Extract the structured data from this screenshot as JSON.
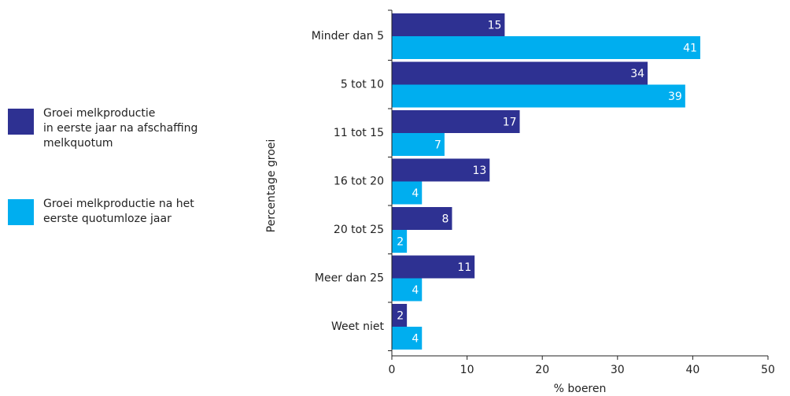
{
  "chart_data": {
    "type": "bar",
    "orientation": "horizontal",
    "title": "",
    "xlabel": "% boeren",
    "ylabel": "Percentage groei",
    "xlim": [
      0,
      50
    ],
    "xticks": [
      "0",
      "10",
      "20",
      "30",
      "40",
      "50"
    ],
    "grid": false,
    "legend_position": "left",
    "categories": [
      "Minder dan 5",
      "5 tot 10",
      "11 tot 15",
      "16 tot 20",
      "20 tot 25",
      "Meer dan 25",
      "Weet niet"
    ],
    "series": [
      {
        "name": "Groei melkproductie\nin eerste jaar na afschaffing\nmelkquotum",
        "color": "#2E3192",
        "values": [
          15,
          34,
          17,
          13,
          8,
          11,
          2
        ]
      },
      {
        "name": "Groei melkproductie na het\neerste quotumloze jaar",
        "color": "#00AEEF",
        "values": [
          41,
          39,
          7,
          4,
          2,
          4,
          4
        ]
      }
    ]
  }
}
